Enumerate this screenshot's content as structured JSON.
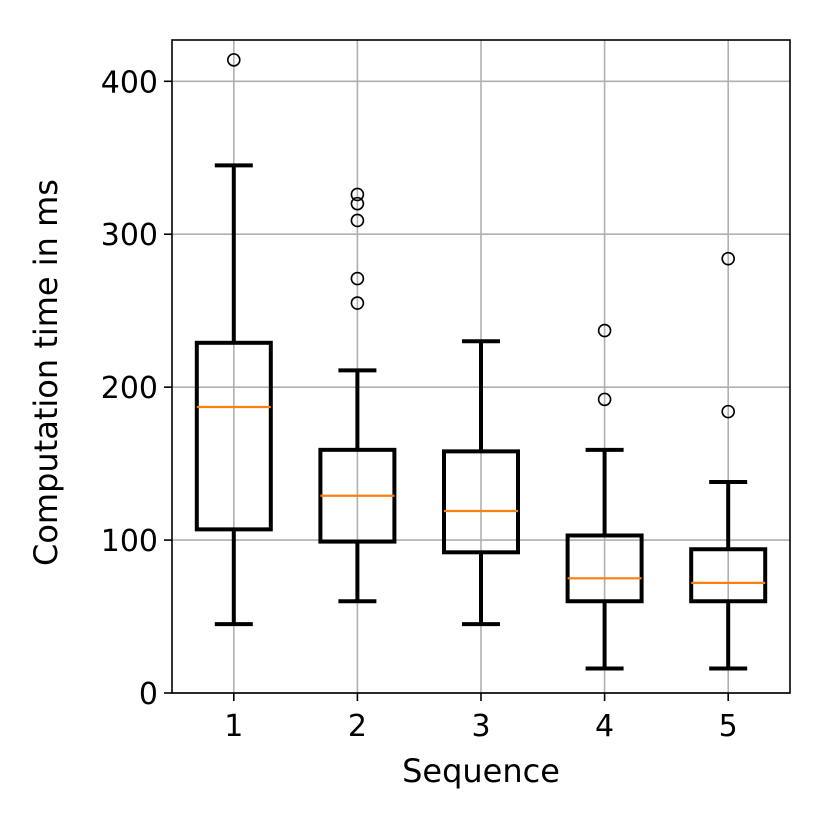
{
  "chart_data": {
    "type": "box",
    "title": "",
    "xlabel": "Sequence",
    "ylabel": "Computation time in ms",
    "xlim": [
      0.5,
      5.5
    ],
    "ylim": [
      0,
      427
    ],
    "x_ticks": [
      "1",
      "2",
      "3",
      "4",
      "5"
    ],
    "y_ticks": [
      0,
      100,
      200,
      300,
      400
    ],
    "grid": true,
    "colors": {
      "box": "#000000",
      "median": "#ff7f0e",
      "grid": "#b0b0b0"
    },
    "boxes": [
      {
        "category": "1",
        "whisker_low": 45,
        "q1": 107,
        "median": 187,
        "q3": 229,
        "whisker_high": 345,
        "outliers": [
          414
        ]
      },
      {
        "category": "2",
        "whisker_low": 60,
        "q1": 99,
        "median": 129,
        "q3": 159,
        "whisker_high": 211,
        "outliers": [
          255,
          271,
          309,
          320,
          326
        ]
      },
      {
        "category": "3",
        "whisker_low": 45,
        "q1": 92,
        "median": 119,
        "q3": 158,
        "whisker_high": 230,
        "outliers": []
      },
      {
        "category": "4",
        "whisker_low": 16,
        "q1": 60,
        "median": 75,
        "q3": 103,
        "whisker_high": 159,
        "outliers": [
          192,
          237
        ]
      },
      {
        "category": "5",
        "whisker_low": 16,
        "q1": 60,
        "median": 72,
        "q3": 94,
        "whisker_high": 138,
        "outliers": [
          184,
          284
        ]
      }
    ]
  }
}
